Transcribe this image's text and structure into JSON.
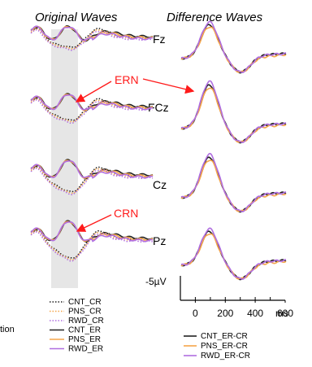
{
  "chart_data": {
    "type": "line",
    "titles": {
      "left": "Original Waves",
      "right": "Difference Waves"
    },
    "electrodes": [
      "Fz",
      "FCz",
      "Cz",
      "Pz"
    ],
    "annotations": {
      "ern": "ERN",
      "crn": "CRN"
    },
    "scale": {
      "amplitude_label": "-5µV",
      "x_ticks": [
        0,
        200,
        400,
        600
      ],
      "x_unit": "ms"
    },
    "cropped_text": {
      "top": "",
      "left": "tion"
    },
    "series_colors": {
      "CNT": "#222222",
      "PNS": "#f5a54a",
      "RWD": "#b06ee0"
    },
    "highlight_window_color": "#e6e6e6",
    "ern_color": "#ff1a1a",
    "legend_left": [
      {
        "name": "CNT_CR",
        "style": "dotted",
        "color": "#222222"
      },
      {
        "name": "PNS_CR",
        "style": "dotted",
        "color": "#f5a54a"
      },
      {
        "name": "RWD_CR",
        "style": "dotted",
        "color": "#b06ee0"
      },
      {
        "name": "CNT_ER",
        "style": "solid",
        "color": "#222222"
      },
      {
        "name": "PNS_ER",
        "style": "solid",
        "color": "#f5a54a"
      },
      {
        "name": "RWD_ER",
        "style": "solid",
        "color": "#b06ee0"
      }
    ],
    "legend_right": [
      {
        "name": "CNT_ER-CR",
        "style": "solid",
        "color": "#222222"
      },
      {
        "name": "PNS_ER-CR",
        "style": "solid",
        "color": "#f5a54a"
      },
      {
        "name": "RWD_ER-CR",
        "style": "solid",
        "color": "#b06ee0"
      }
    ]
  }
}
